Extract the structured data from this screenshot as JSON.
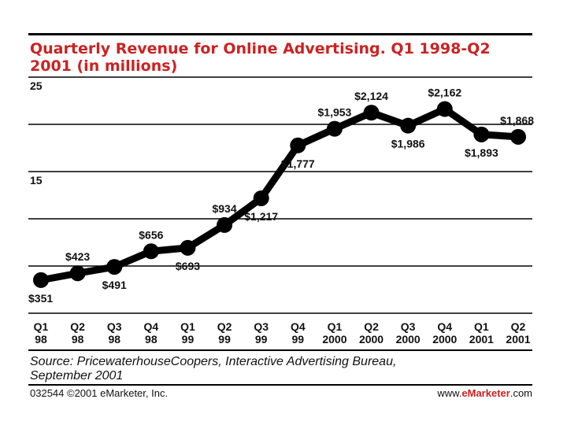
{
  "chart_data": {
    "type": "line",
    "title_line1": "Quarterly Revenue for Online Advertising. Q1 1998-Q2",
    "title_line2": "2001 (in millions)",
    "xlabel": "",
    "ylabel": "",
    "y_tick_labels": [
      "25",
      "15"
    ],
    "ylim": [
      0,
      2500
    ],
    "grid": true,
    "categories": [
      [
        "Q1",
        "98"
      ],
      [
        "Q2",
        "98"
      ],
      [
        "Q3",
        "98"
      ],
      [
        "Q4",
        "98"
      ],
      [
        "Q1",
        "99"
      ],
      [
        "Q2",
        "99"
      ],
      [
        "Q3",
        "99"
      ],
      [
        "Q4",
        "99"
      ],
      [
        "Q1",
        "2000"
      ],
      [
        "Q2",
        "2000"
      ],
      [
        "Q3",
        "2000"
      ],
      [
        "Q4",
        "2000"
      ],
      [
        "Q1",
        "2001"
      ],
      [
        "Q2",
        "2001"
      ]
    ],
    "values": [
      351,
      423,
      491,
      656,
      693,
      934,
      1217,
      1777,
      1953,
      2124,
      1986,
      2162,
      1893,
      1868
    ],
    "data_labels": [
      "$351",
      "$423",
      "$491",
      "$656",
      "$693",
      "$934",
      "$1,217",
      "$1,777",
      "$1,953",
      "$2,124",
      "$1,986",
      "$2,162",
      "$1,893",
      "$1,868"
    ],
    "label_positions": [
      "below",
      "above",
      "below",
      "above",
      "below",
      "above",
      "below",
      "below",
      "above",
      "above",
      "below",
      "above",
      "below",
      "above"
    ],
    "line_color": "#000000"
  },
  "source": {
    "line1": "Source: PricewaterhouseCoopers, Interactive Advertising Bureau,",
    "line2": "September 2001"
  },
  "footer": {
    "left": "032544 ©2001 eMarketer, Inc.",
    "right_prefix": "www.",
    "right_brand": "eMarketer",
    "right_suffix": ".com"
  },
  "colors": {
    "title": "#cc2222",
    "rule": "#000000",
    "grid": "#000000"
  }
}
